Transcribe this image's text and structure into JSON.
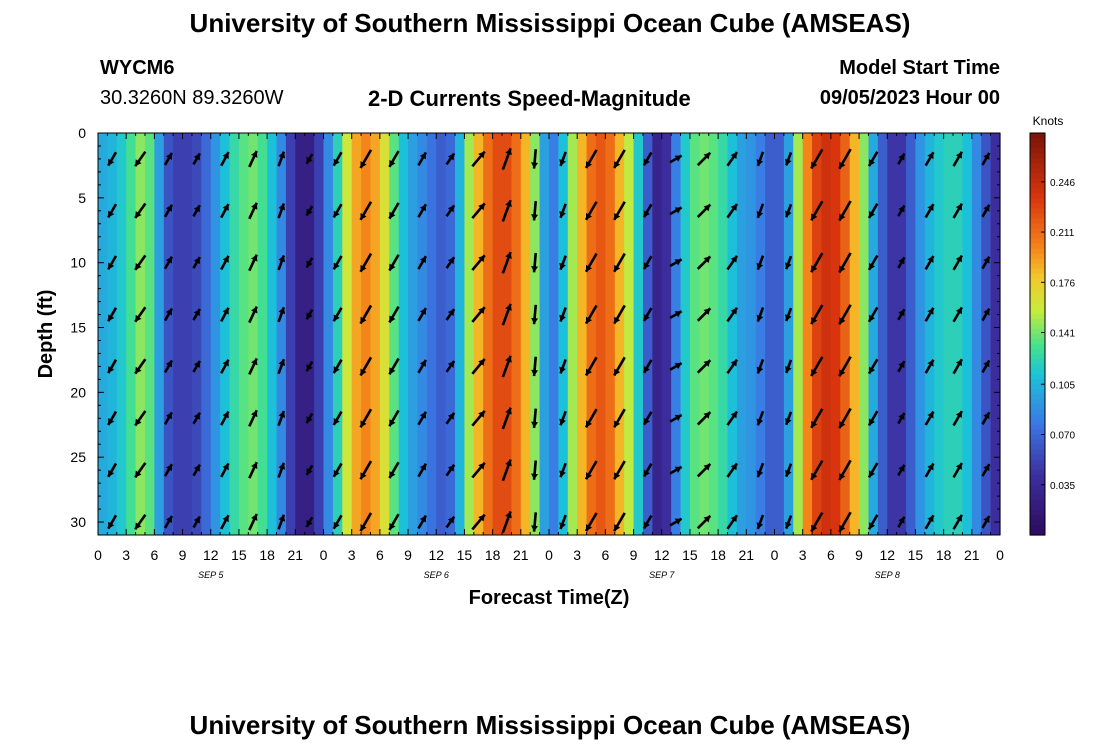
{
  "page": {
    "title_top": "University of Southern Mississippi Ocean Cube (AMSEAS)",
    "title_bottom": "University of Southern Mississippi Ocean Cube (AMSEAS)",
    "station_id": "WYCM6",
    "station_coords": "30.3260N  89.3260W",
    "subtitle": "2-D Currents Speed-Magnitude",
    "model_start_label": "Model Start Time",
    "model_start_value": "09/05/2023 Hour 00"
  },
  "chart_data": {
    "type": "heatmap",
    "title": "2-D Currents Speed-Magnitude",
    "xlabel": "Forecast Time(Z)",
    "ylabel": "Depth (ft)",
    "colorbar_label": "Knots",
    "colorbar_ticks": [
      0.246,
      0.211,
      0.176,
      0.141,
      0.105,
      0.07,
      0.035
    ],
    "colorbar_range": [
      0.0,
      0.28
    ],
    "ylim": [
      0,
      31
    ],
    "y_ticks": [
      0,
      5,
      10,
      15,
      20,
      25,
      30
    ],
    "xlim_hours": [
      0,
      96
    ],
    "x_tick_labels": [
      "0",
      "3",
      "6",
      "9",
      "12",
      "15",
      "18",
      "21",
      "0",
      "3",
      "6",
      "9",
      "12",
      "15",
      "18",
      "21",
      "0",
      "3",
      "6",
      "9",
      "12",
      "15",
      "18",
      "21",
      "0",
      "3",
      "6",
      "9",
      "12",
      "15",
      "18",
      "21",
      "0"
    ],
    "day_labels": [
      "SEP 5",
      "SEP 6",
      "SEP 7",
      "SEP 8"
    ],
    "speed_by_hour": [
      0.1,
      0.1,
      0.11,
      0.12,
      0.14,
      0.15,
      0.12,
      0.07,
      0.05,
      0.05,
      0.05,
      0.06,
      0.08,
      0.1,
      0.12,
      0.13,
      0.14,
      0.14,
      0.12,
      0.1,
      0.07,
      0.03,
      0.02,
      0.03,
      0.07,
      0.1,
      0.14,
      0.18,
      0.2,
      0.2,
      0.18,
      0.15,
      0.12,
      0.1,
      0.09,
      0.08,
      0.07,
      0.06,
      0.08,
      0.13,
      0.17,
      0.2,
      0.22,
      0.23,
      0.22,
      0.2,
      0.17,
      0.12,
      0.07,
      0.09,
      0.13,
      0.17,
      0.2,
      0.22,
      0.22,
      0.2,
      0.17,
      0.14,
      0.09,
      0.04,
      0.02,
      0.06,
      0.1,
      0.13,
      0.14,
      0.14,
      0.13,
      0.12,
      0.1,
      0.09,
      0.09,
      0.07,
      0.06,
      0.07,
      0.12,
      0.18,
      0.22,
      0.24,
      0.24,
      0.23,
      0.2,
      0.17,
      0.12,
      0.08,
      0.05,
      0.04,
      0.05,
      0.08,
      0.1,
      0.11,
      0.12,
      0.12,
      0.12,
      0.1,
      0.07,
      0.05,
      0.03
    ],
    "arrow_dir_deg_by_hour": [
      210,
      210,
      210,
      215,
      215,
      210,
      205,
      30,
      30,
      30,
      30,
      30,
      30,
      28,
      25,
      25,
      25,
      25,
      25,
      20,
      20,
      20,
      210,
      210,
      210,
      210,
      210,
      210,
      210,
      210,
      210,
      210,
      30,
      30,
      30,
      35,
      35,
      35,
      35,
      35,
      40,
      40,
      30,
      20,
      200,
      190,
      185,
      180,
      190,
      200,
      210,
      210,
      210,
      210,
      210,
      210,
      210,
      210,
      210,
      210,
      60,
      60,
      60,
      60,
      45,
      40,
      35,
      35,
      30,
      30,
      200,
      200,
      200,
      200,
      210,
      210,
      210,
      210,
      210,
      210,
      210,
      210,
      210,
      210,
      30,
      30,
      30,
      30,
      30,
      30,
      30,
      30,
      30,
      30,
      30,
      30,
      30
    ]
  }
}
